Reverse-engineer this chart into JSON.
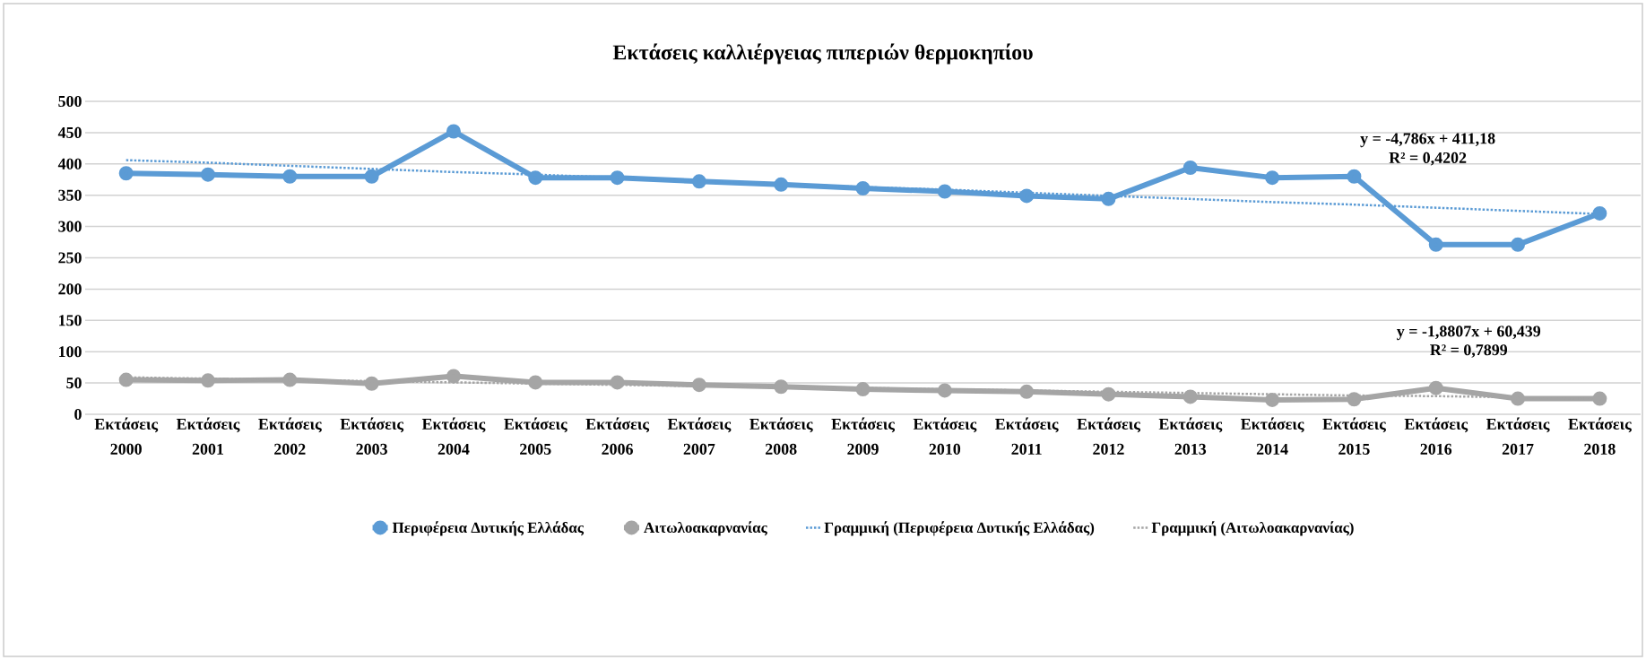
{
  "chart_data": {
    "type": "line",
    "title": "Εκτάσεις καλλιέργειας πιπεριών θερμοκηπίου",
    "categories": [
      "Εκτάσεις 2000",
      "Εκτάσεις 2001",
      "Εκτάσεις 2002",
      "Εκτάσεις 2003",
      "Εκτάσεις 2004",
      "Εκτάσεις 2005",
      "Εκτάσεις 2006",
      "Εκτάσεις 2007",
      "Εκτάσεις 2008",
      "Εκτάσεις 2009",
      "Εκτάσεις 2010",
      "Εκτάσεις 2011",
      "Εκτάσεις 2012",
      "Εκτάσεις 2013",
      "Εκτάσεις 2014",
      "Εκτάσεις 2015",
      "Εκτάσεις 2016",
      "Εκτάσεις 2017",
      "Εκτάσεις 2018"
    ],
    "series": [
      {
        "name": "Περιφέρεια Δυτικής Ελλάδας",
        "color": "#5b9bd5",
        "marker": "circle",
        "line_style": "solid",
        "values": [
          385,
          383,
          380,
          380,
          452,
          378,
          378,
          372,
          367,
          361,
          356,
          349,
          344,
          394,
          378,
          380,
          271,
          271,
          321
        ]
      },
      {
        "name": "Αιτωλοακαρνανίας",
        "color": "#a5a5a5",
        "marker": "circle",
        "line_style": "solid",
        "values": [
          55,
          54,
          55,
          49,
          61,
          51,
          51,
          47,
          44,
          40,
          38,
          36,
          32,
          28,
          23,
          24,
          42,
          25,
          25
        ]
      },
      {
        "name": "Γραμμική (Περιφέρεια Δυτικής Ελλάδας)",
        "color": "#5b9bd5",
        "marker": "none",
        "line_style": "dotted",
        "values": [
          406,
          402,
          397,
          392,
          387,
          383,
          378,
          373,
          368,
          363,
          359,
          354,
          349,
          344,
          339,
          335,
          330,
          325,
          320
        ]
      },
      {
        "name": "Γραμμική (Αιτωλοακαρνανίας)",
        "color": "#a5a5a5",
        "marker": "none",
        "line_style": "dotted",
        "values": [
          59,
          57,
          55,
          53,
          51,
          49,
          47,
          45,
          44,
          42,
          40,
          38,
          36,
          34,
          32,
          30,
          29,
          27,
          25
        ]
      }
    ],
    "annotations": [
      "y = -4,786x + 411,18",
      "R² = 0,4202",
      "y = -1,8807x + 60,439",
      "R² = 0,7899"
    ],
    "ylim": [
      0,
      500
    ],
    "yticks": [
      0,
      50,
      100,
      150,
      200,
      250,
      300,
      350,
      400,
      450,
      500
    ],
    "grid": "y",
    "legend": "bottom"
  }
}
